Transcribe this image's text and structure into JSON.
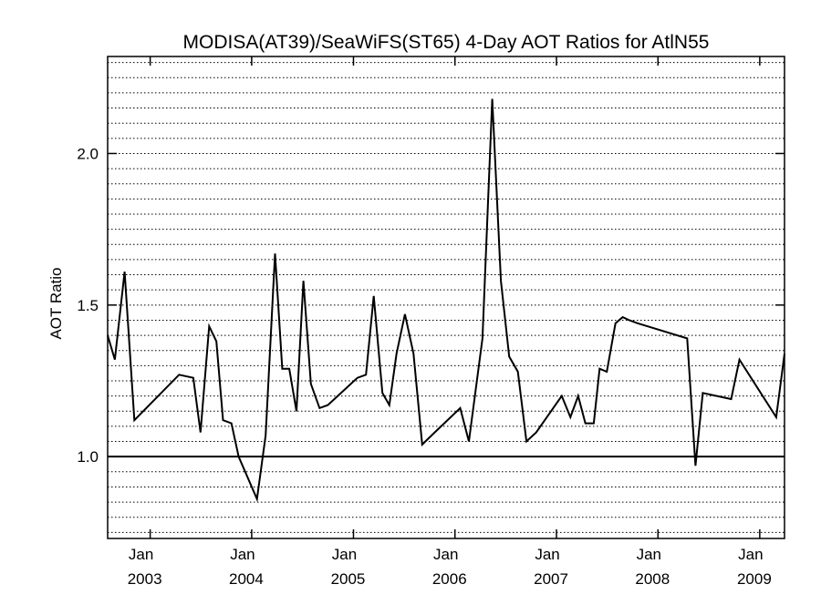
{
  "chart_data": {
    "type": "line",
    "title": "MODISA(AT39)/SeaWiFS(ST65) 4-Day AOT Ratios for AtlN55",
    "xlabel": "",
    "ylabel": "AOT Ratio",
    "xlim": [
      "2002-08-01",
      "2009-03-31"
    ],
    "ylim": [
      0.73,
      2.32
    ],
    "y_ticks": [
      {
        "value": 1.0,
        "label": "1.0"
      },
      {
        "value": 1.5,
        "label": "1.5"
      },
      {
        "value": 2.0,
        "label": "2.0"
      }
    ],
    "x_ticks": [
      {
        "date": "2003-01-01",
        "month": "Jan",
        "year": "2003"
      },
      {
        "date": "2004-01-01",
        "month": "Jan",
        "year": "2004"
      },
      {
        "date": "2005-01-01",
        "month": "Jan",
        "year": "2005"
      },
      {
        "date": "2006-01-01",
        "month": "Jan",
        "year": "2006"
      },
      {
        "date": "2007-01-01",
        "month": "Jan",
        "year": "2007"
      },
      {
        "date": "2008-01-01",
        "month": "Jan",
        "year": "2008"
      },
      {
        "date": "2009-01-01",
        "month": "Jan",
        "year": "2009"
      }
    ],
    "grid": "horizontal dotted",
    "reference_line": 1.0,
    "line_color": "#000000",
    "series": [
      {
        "x": [
          "2002-08-01",
          "2002-08-27",
          "2002-10-01",
          "2002-11-05",
          "2003-04-15",
          "2003-06-05",
          "2003-07-01",
          "2003-08-01",
          "2003-08-27",
          "2003-09-20",
          "2003-10-20",
          "2003-11-15",
          "2004-01-20",
          "2004-02-20",
          "2004-03-25",
          "2004-04-20",
          "2004-05-15",
          "2004-06-10",
          "2004-07-05",
          "2004-08-01",
          "2004-09-01",
          "2004-10-01",
          "2005-01-15",
          "2005-02-15",
          "2005-03-15",
          "2005-04-15",
          "2005-05-10",
          "2005-06-05",
          "2005-07-05",
          "2005-08-05",
          "2005-09-05",
          "2005-10-20",
          "2006-01-20",
          "2006-02-20",
          "2006-04-10",
          "2006-05-15",
          "2006-06-15",
          "2006-07-15",
          "2006-08-15",
          "2006-09-15",
          "2006-10-20",
          "2007-01-20",
          "2007-02-20",
          "2007-03-20",
          "2007-04-15",
          "2007-05-15",
          "2007-06-05",
          "2007-07-01",
          "2007-08-01",
          "2007-08-27",
          "2007-09-20",
          "2007-10-20",
          "2008-04-15",
          "2008-05-15",
          "2008-06-10",
          "2008-09-20",
          "2008-10-20",
          "2009-03-01",
          "2009-03-31"
        ],
        "values": [
          1.4,
          1.32,
          1.61,
          1.12,
          1.27,
          1.26,
          1.08,
          1.43,
          1.38,
          1.12,
          1.11,
          1.0,
          0.86,
          1.07,
          1.67,
          1.29,
          1.29,
          1.15,
          1.58,
          1.24,
          1.16,
          1.17,
          1.26,
          1.27,
          1.53,
          1.21,
          1.17,
          1.34,
          1.47,
          1.34,
          1.04,
          1.08,
          1.16,
          1.05,
          1.39,
          2.18,
          1.58,
          1.33,
          1.28,
          1.05,
          1.08,
          1.2,
          1.13,
          1.2,
          1.11,
          1.11,
          1.29,
          1.28,
          1.44,
          1.46,
          1.45,
          1.44,
          1.39,
          0.97,
          1.21,
          1.19,
          1.32,
          1.13,
          1.34
        ]
      }
    ]
  }
}
